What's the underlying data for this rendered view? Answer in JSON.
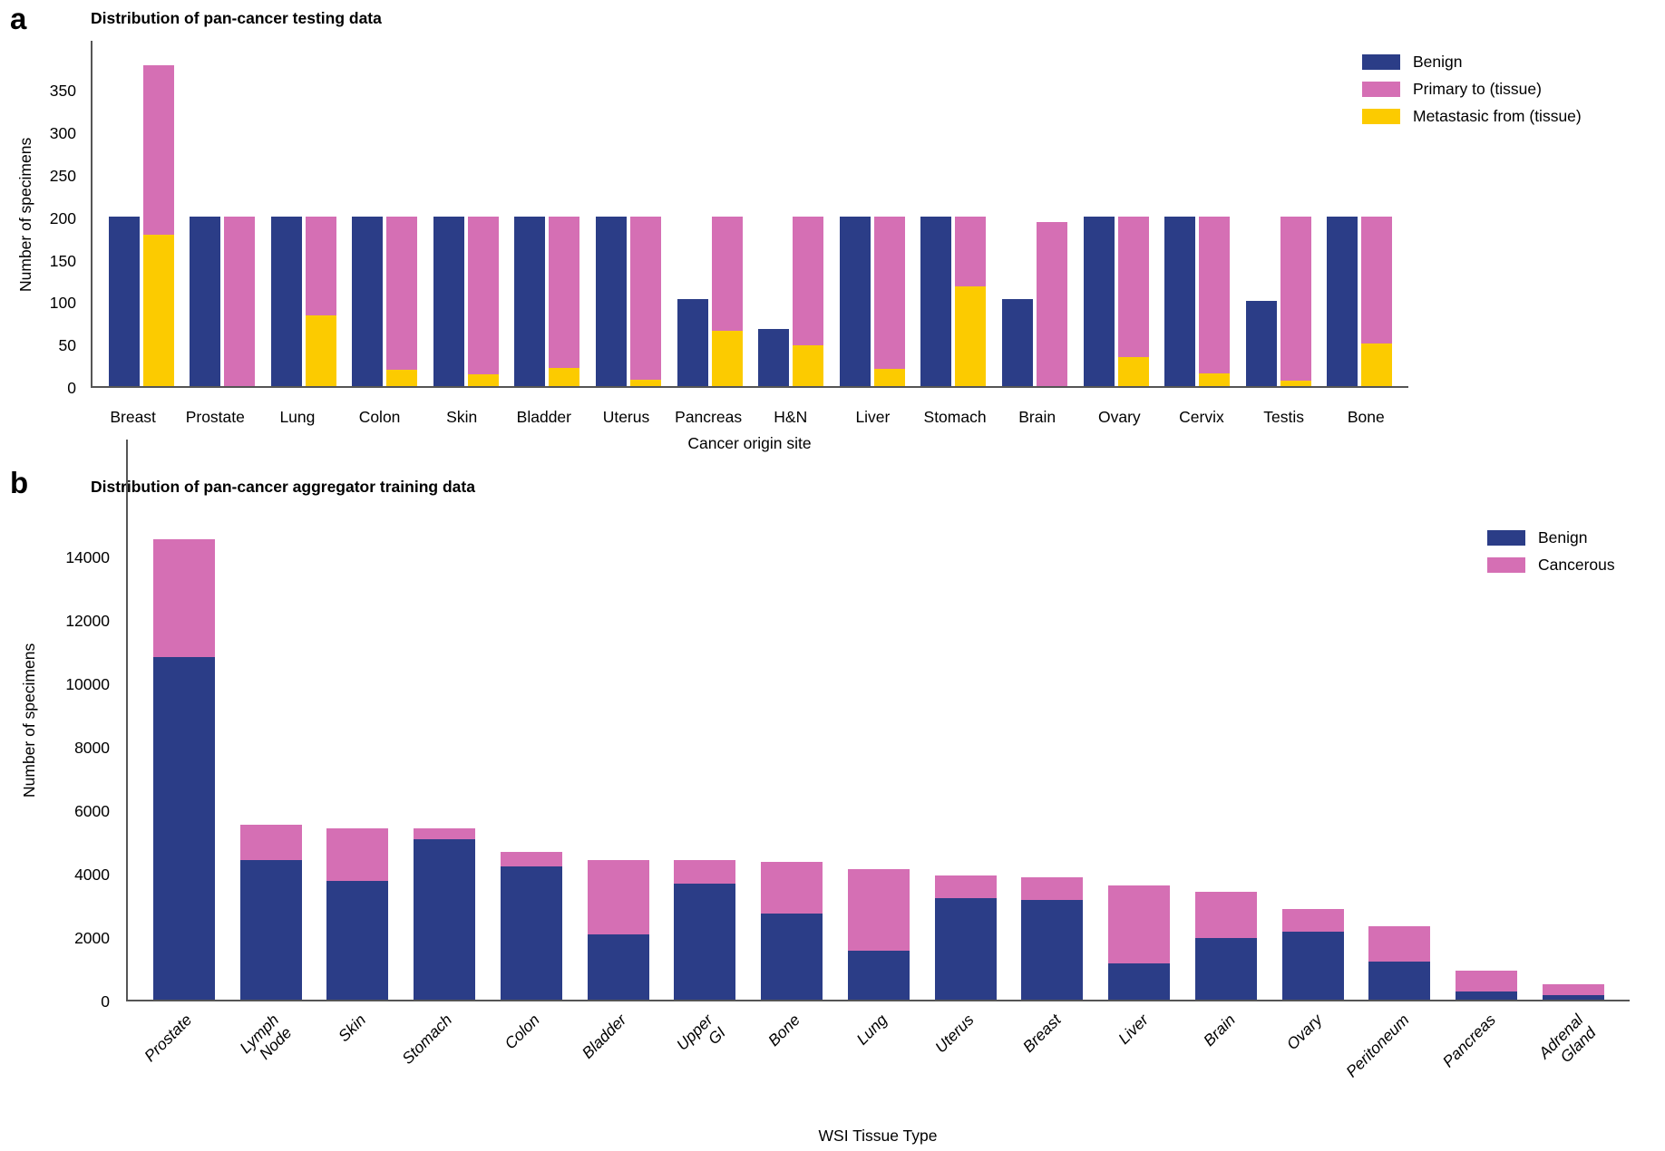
{
  "panel_a": {
    "panel_label": "a",
    "title": "Distribution of pan-cancer testing data",
    "ylabel": "Number of specimens",
    "xlabel": "Cancer origin site",
    "legend": [
      "Benign",
      "Primary to (tissue)",
      "Metastasic from (tissue)"
    ]
  },
  "panel_b": {
    "panel_label": "b",
    "title": "Distribution of pan-cancer aggregator training data",
    "ylabel": "Number of specimens",
    "xlabel": "WSI Tissue Type",
    "legend": [
      "Benign",
      "Cancerous"
    ]
  },
  "colors": {
    "benign": "#2b3d87",
    "primary": "#d56fb4",
    "metastatic": "#fccb00",
    "cancerous": "#d56fb4",
    "axis": "#555555"
  },
  "chart_data": [
    {
      "type": "bar",
      "subtype": "grouped-with-stacked-second-bar",
      "title": "Distribution of pan-cancer testing data",
      "xlabel": "Cancer origin site",
      "ylabel": "Number of specimens",
      "ylim": [
        0,
        409
      ],
      "yticks": [
        0,
        50,
        100,
        150,
        200,
        250,
        300,
        350
      ],
      "grid": false,
      "legend_position": "upper right",
      "categories": [
        "Breast",
        "Prostate",
        "Lung",
        "Colon",
        "Skin",
        "Bladder",
        "Uterus",
        "Pancreas",
        "H&N",
        "Liver",
        "Stomach",
        "Brain",
        "Ovary",
        "Cervix",
        "Testis",
        "Bone"
      ],
      "series": [
        {
          "name": "Benign",
          "role": "left-bar",
          "values": [
            200,
            200,
            200,
            200,
            200,
            200,
            200,
            103,
            67,
            200,
            200,
            103,
            200,
            200,
            100,
            200
          ]
        },
        {
          "name": "Metastasic from (tissue)",
          "role": "right-bar-stack-bottom",
          "values": [
            178,
            0,
            83,
            19,
            14,
            21,
            8,
            65,
            48,
            20,
            118,
            0,
            34,
            15,
            6,
            50
          ]
        },
        {
          "name": "Primary to (tissue)",
          "role": "right-bar-stack-top",
          "values": [
            200,
            200,
            117,
            181,
            186,
            179,
            192,
            135,
            152,
            180,
            82,
            193,
            166,
            185,
            194,
            150
          ]
        }
      ]
    },
    {
      "type": "bar",
      "subtype": "stacked",
      "title": "Distribution of pan-cancer aggregator training data",
      "xlabel": "WSI Tissue Type",
      "ylabel": "Number of specimens",
      "ylim": [
        0,
        17700
      ],
      "yticks": [
        0,
        2000,
        4000,
        6000,
        8000,
        10000,
        12000,
        14000
      ],
      "grid": false,
      "legend_position": "upper right",
      "categories": [
        "Prostate",
        "Lymph Node",
        "Skin",
        "Stomach",
        "Colon",
        "Bladder",
        "Upper GI",
        "Bone",
        "Lung",
        "Uterus",
        "Breast",
        "Liver",
        "Brain",
        "Ovary",
        "Peritoneum",
        "Pancreas",
        "Adrenal\nGland"
      ],
      "series": [
        {
          "name": "Benign",
          "role": "stack-bottom",
          "values": [
            10800,
            4400,
            3750,
            5050,
            4200,
            2050,
            3650,
            2700,
            1550,
            3200,
            3150,
            1150,
            1950,
            2150,
            1200,
            250,
            150
          ]
        },
        {
          "name": "Cancerous",
          "role": "stack-top",
          "values": [
            3700,
            1100,
            1650,
            350,
            450,
            2350,
            750,
            1650,
            2550,
            700,
            700,
            2450,
            1450,
            700,
            1100,
            650,
            350
          ]
        }
      ]
    }
  ]
}
